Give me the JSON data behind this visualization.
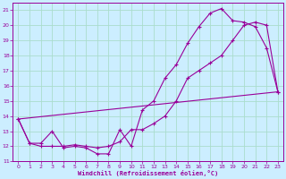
{
  "xlabel": "Windchill (Refroidissement éolien,°C)",
  "bg_color": "#cceeff",
  "line_color": "#990099",
  "grid_color": "#aaddcc",
  "xlim": [
    -0.5,
    23.5
  ],
  "ylim": [
    11,
    21.5
  ],
  "xticks": [
    0,
    1,
    2,
    3,
    4,
    5,
    6,
    7,
    8,
    9,
    10,
    11,
    12,
    13,
    14,
    15,
    16,
    17,
    18,
    19,
    20,
    21,
    22,
    23
  ],
  "yticks": [
    11,
    12,
    13,
    14,
    15,
    16,
    17,
    18,
    19,
    20,
    21
  ],
  "series1_x": [
    0,
    1,
    2,
    3,
    4,
    5,
    6,
    7,
    8,
    9,
    10,
    11,
    12,
    13,
    14,
    15,
    16,
    17,
    18,
    19,
    20,
    21,
    22,
    23
  ],
  "series1_y": [
    13.8,
    12.2,
    12.2,
    13.0,
    11.9,
    12.0,
    11.9,
    11.5,
    11.5,
    13.1,
    12.0,
    14.4,
    15.0,
    16.5,
    17.4,
    18.8,
    19.9,
    20.8,
    21.1,
    20.3,
    20.2,
    19.9,
    18.5,
    15.6
  ],
  "series2_x": [
    0,
    1,
    2,
    3,
    4,
    5,
    6,
    7,
    8,
    9,
    10,
    11,
    12,
    13,
    14,
    15,
    16,
    17,
    18,
    19,
    20,
    21,
    22,
    23
  ],
  "series2_y": [
    13.8,
    12.2,
    12.0,
    12.0,
    12.0,
    12.1,
    12.0,
    11.9,
    12.0,
    12.3,
    13.1,
    13.1,
    13.5,
    14.0,
    15.0,
    16.5,
    17.0,
    17.5,
    18.0,
    19.0,
    20.0,
    20.2,
    20.0,
    15.6
  ],
  "series3_x": [
    0,
    23
  ],
  "series3_y": [
    13.8,
    15.6
  ]
}
